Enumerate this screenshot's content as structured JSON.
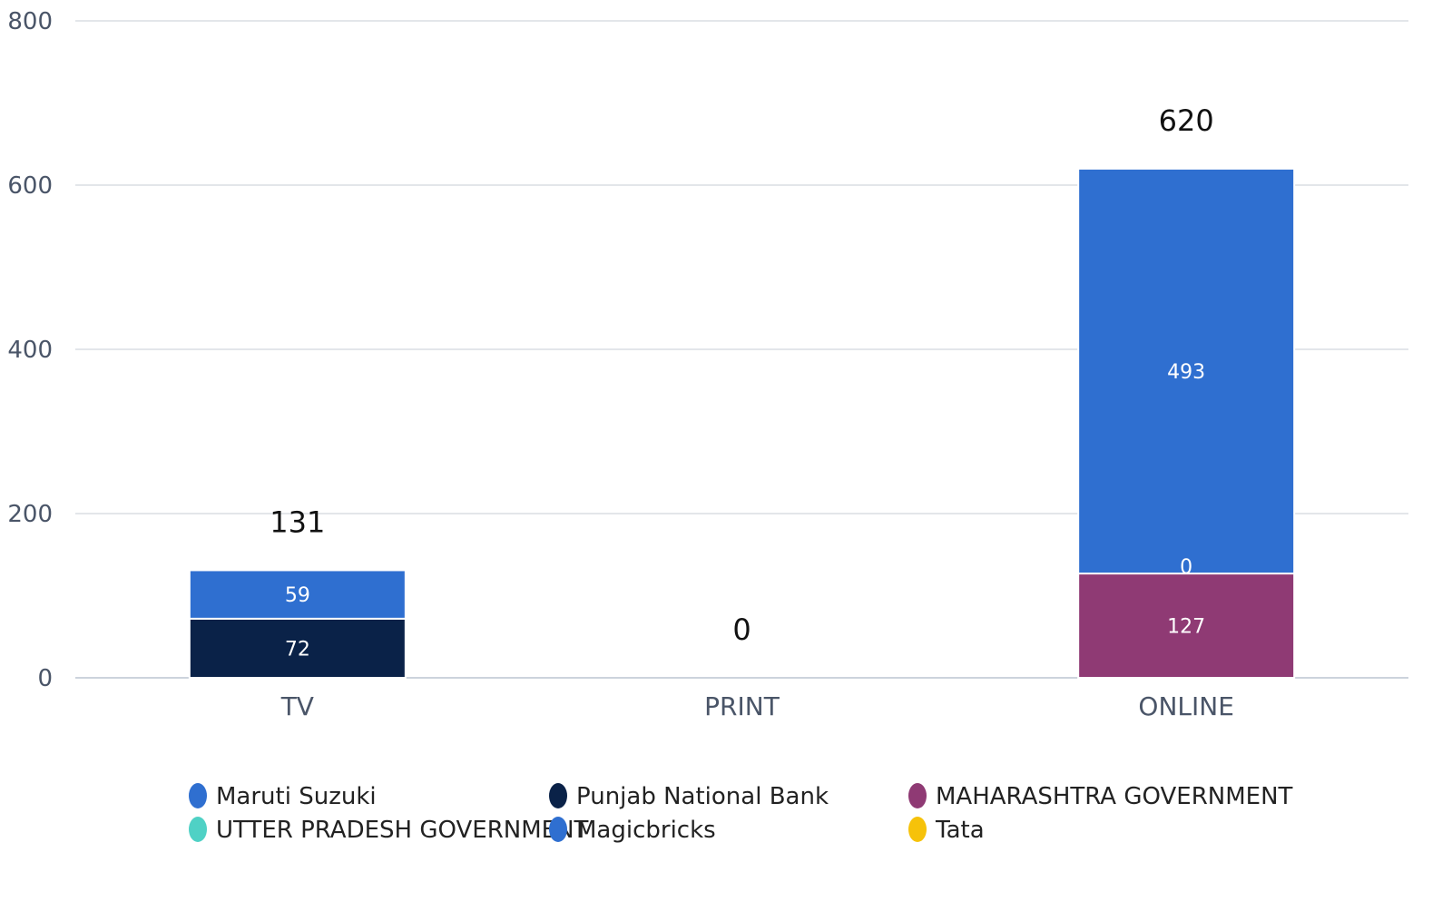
{
  "chart_data": {
    "type": "bar",
    "stacked": true,
    "categories": [
      "TV",
      "PRINT",
      "ONLINE"
    ],
    "ylim": [
      0,
      800
    ],
    "yticks": [
      0,
      200,
      400,
      600,
      800
    ],
    "grid": true,
    "legend_position": "bottom",
    "totals": [
      131,
      0,
      620
    ],
    "series": [
      {
        "name": "Maruti Suzuki",
        "color": "#2f6fd0",
        "values": [
          59,
          0,
          493
        ]
      },
      {
        "name": "Punjab National Bank",
        "color": "#0a2248",
        "values": [
          72,
          0,
          0
        ]
      },
      {
        "name": "MAHARASHTRA GOVERNMENT",
        "color": "#8f3a74",
        "values": [
          0,
          0,
          127
        ]
      },
      {
        "name": "UTTER PRADESH GOVERNMENT",
        "color": "#4fd1c5",
        "values": [
          0,
          0,
          0
        ]
      },
      {
        "name": "Magicbricks",
        "color": "#2f6fd0",
        "values": [
          0,
          0,
          0
        ]
      },
      {
        "name": "Tata",
        "color": "#f6c20a",
        "values": [
          0,
          0,
          0
        ]
      }
    ],
    "segment_labels": [
      {
        "category": "TV",
        "series": "Punjab National Bank",
        "text": "72"
      },
      {
        "category": "TV",
        "series": "Maruti Suzuki",
        "text": "59"
      },
      {
        "category": "ONLINE",
        "series": "MAHARASHTRA GOVERNMENT",
        "text": "127"
      },
      {
        "category": "ONLINE",
        "series": "UTTER PRADESH GOVERNMENT",
        "text": "0"
      },
      {
        "category": "ONLINE",
        "series": "Maruti Suzuki",
        "text": "493"
      }
    ]
  }
}
